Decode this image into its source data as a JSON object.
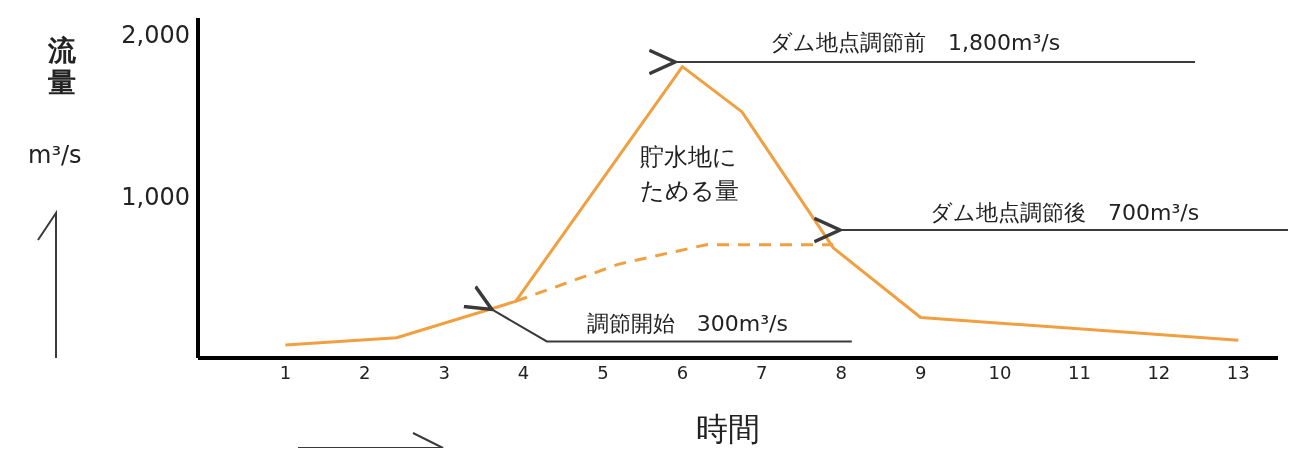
{
  "chart_data": {
    "type": "line",
    "xlabel": "時間",
    "ylabel": "流量 m³/s",
    "xlim": [
      -0.1,
      13.5
    ],
    "xticks": [
      1,
      2,
      3,
      4,
      5,
      6,
      7,
      8,
      9,
      10,
      11,
      12,
      13
    ],
    "ylim": [
      0,
      2100
    ],
    "yticks": [
      {
        "value": 1000,
        "label": "1,000"
      },
      {
        "value": 2000,
        "label": "2,000"
      }
    ],
    "marker": "none",
    "series": [
      {
        "color": "#f0a040",
        "line_style": "solid",
        "x": [
          1,
          2.4,
          3.9,
          6,
          6.75,
          7.9,
          9,
          13
        ],
        "values": [
          80,
          125,
          350,
          1800,
          1520,
          680,
          250,
          110
        ]
      },
      {
        "color": "#f0a040",
        "line_style": "dashed",
        "x": [
          3.9,
          5.2,
          6.3,
          7.9
        ],
        "values": [
          350,
          580,
          700,
          700
        ]
      }
    ],
    "annotations": [
      "ダム地点調節前　1,800m³/s",
      "ダム地点調節後　700m³/s",
      {
        "text": "調節開始　300m³/s",
        "x": 3.6,
        "y": 300
      },
      "貯水地にためる量"
    ]
  }
}
